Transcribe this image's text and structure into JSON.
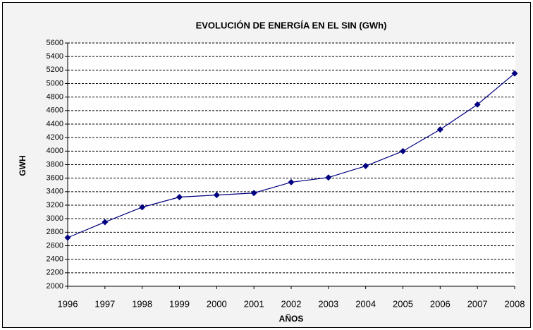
{
  "chart_data": {
    "type": "line",
    "title": "EVOLUCIÓN DE ENERGÍA EN EL SIN  (GWh)",
    "x_label": "AÑOS",
    "y_label": "GWH",
    "categories": [
      "1996",
      "1997",
      "1998",
      "1999",
      "2000",
      "2001",
      "2002",
      "2003",
      "2004",
      "2005",
      "2006",
      "2007",
      "2008"
    ],
    "values": [
      2720,
      2950,
      3170,
      3320,
      3350,
      3380,
      3540,
      3610,
      3780,
      4000,
      4320,
      4690,
      5150
    ],
    "color": "#000080",
    "ylim": [
      2000,
      5600
    ],
    "yticks": [
      2000,
      2200,
      2400,
      2600,
      2800,
      3000,
      3200,
      3400,
      3600,
      3800,
      4000,
      4200,
      4400,
      4600,
      4800,
      5000,
      5200,
      5400,
      5600
    ],
    "grid": true
  }
}
